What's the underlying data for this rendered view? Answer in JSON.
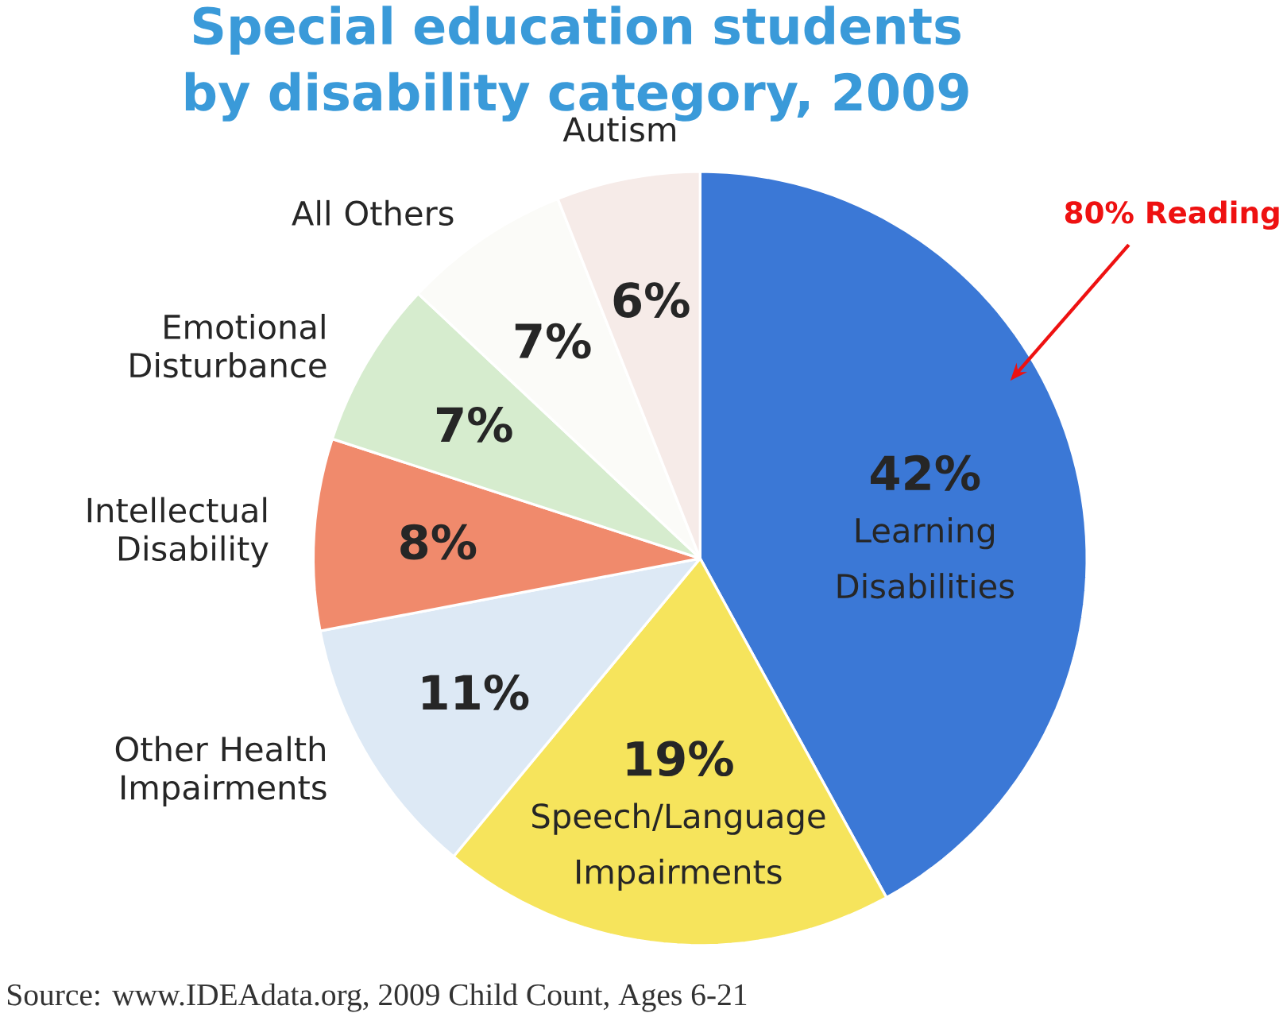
{
  "chart_data": {
    "type": "pie",
    "title": "Special education students by disability category, 2009",
    "categories": [
      "Learning Disabilities",
      "Speech/Language Impairments",
      "Other Health Impairments",
      "Intellectual Disability",
      "Emotional Disturbance",
      "All Others",
      "Autism"
    ],
    "values": [
      42,
      19,
      11,
      8,
      7,
      7,
      6
    ],
    "value_labels": [
      "42%",
      "19%",
      "11%",
      "8%",
      "7%",
      "7%",
      "6%"
    ],
    "colors": [
      "#3b78d6",
      "#f6e45c",
      "#dde9f5",
      "#f08a6c",
      "#d6ecce",
      "#fbfbf8",
      "#f6ebe8"
    ],
    "annotations": [
      "80% Reading",
      "Source: www.IDEAdata.org, 2009 Child Count, Ages 6-21"
    ]
  }
}
